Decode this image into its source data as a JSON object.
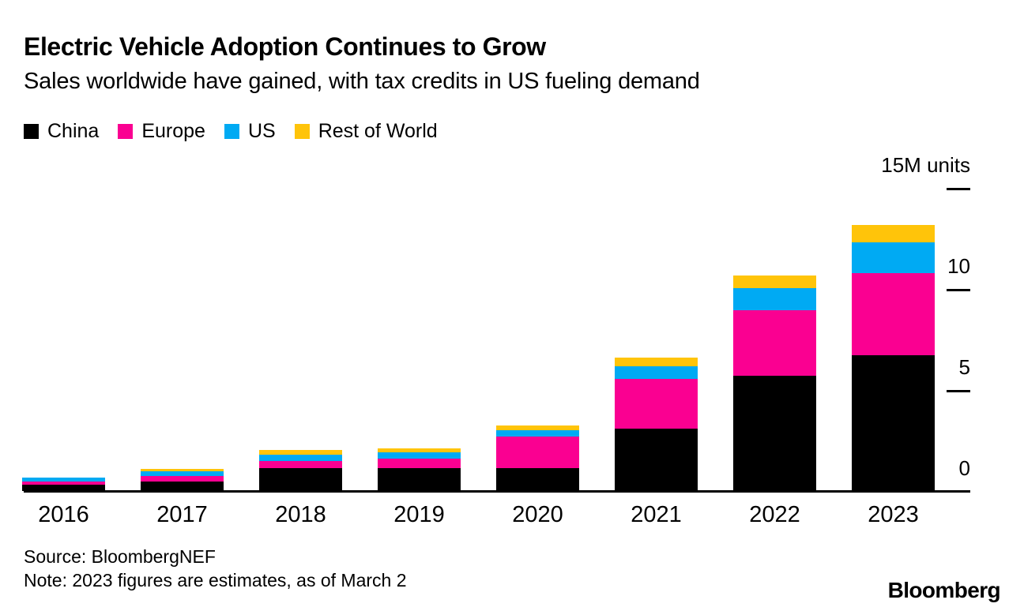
{
  "header": {
    "title": "Electric Vehicle Adoption Continues to Grow",
    "subtitle": "Sales worldwide have gained, with tax credits in US fueling demand"
  },
  "chart_data": {
    "type": "bar",
    "stacked": true,
    "title": "Electric Vehicle Adoption Continues to Grow",
    "subtitle": "Sales worldwide have gained, with tax credits in US fueling demand",
    "unit_label": "15M units",
    "categories": [
      "2016",
      "2017",
      "2018",
      "2019",
      "2020",
      "2021",
      "2022",
      "2023"
    ],
    "series": [
      {
        "name": "China",
        "color": "#000000",
        "values": [
          0.3,
          0.48,
          1.12,
          1.12,
          1.15,
          3.1,
          5.7,
          6.72
        ]
      },
      {
        "name": "Europe",
        "color": "#FA0091",
        "values": [
          0.18,
          0.28,
          0.35,
          0.48,
          1.53,
          2.46,
          3.23,
          4.06
        ]
      },
      {
        "name": "US",
        "color": "#00AAF3",
        "values": [
          0.17,
          0.22,
          0.34,
          0.3,
          0.33,
          0.63,
          1.1,
          1.52
        ]
      },
      {
        "name": "Rest of World",
        "color": "#FFC40A",
        "values": [
          0.02,
          0.12,
          0.22,
          0.22,
          0.23,
          0.4,
          0.65,
          0.88
        ]
      }
    ],
    "ylim": [
      0,
      15
    ],
    "yticks": [
      {
        "value": 15,
        "label": "15M units",
        "tick_visible": true
      },
      {
        "value": 10,
        "label": "10",
        "tick_visible": true
      },
      {
        "value": 5,
        "label": "5",
        "tick_visible": true
      },
      {
        "value": 0,
        "label": "0",
        "tick_visible": false
      }
    ],
    "grid": false,
    "legend_position": "top-left",
    "units": "millions of vehicles"
  },
  "footer": {
    "source": "Source: BloombergNEF",
    "note": "Note: 2023 figures are estimates, as of March 2",
    "brand": "Bloomberg"
  }
}
